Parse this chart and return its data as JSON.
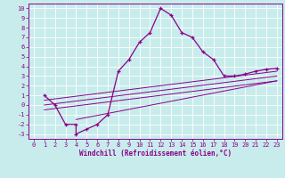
{
  "xlabel": "Windchill (Refroidissement éolien,°C)",
  "bg_color": "#c8ecec",
  "line_color": "#8b008b",
  "grid_color": "#ffffff",
  "spine_color": "#8b008b",
  "xlim": [
    -0.5,
    23.5
  ],
  "ylim": [
    -3.5,
    10.5
  ],
  "xticks": [
    0,
    1,
    2,
    3,
    4,
    5,
    6,
    7,
    8,
    9,
    10,
    11,
    12,
    13,
    14,
    15,
    16,
    17,
    18,
    19,
    20,
    21,
    22,
    23
  ],
  "yticks": [
    -3,
    -2,
    -1,
    0,
    1,
    2,
    3,
    4,
    5,
    6,
    7,
    8,
    9,
    10
  ],
  "main_line_x": [
    1,
    2,
    3,
    4,
    4,
    5,
    6,
    7,
    8,
    9,
    10,
    11,
    12,
    13,
    14,
    15,
    16,
    17,
    18,
    19,
    20,
    21,
    22,
    23
  ],
  "main_line_y": [
    1.0,
    0.0,
    -2.0,
    -2.0,
    -3.0,
    -2.5,
    -2.0,
    -1.0,
    3.5,
    4.7,
    6.5,
    7.5,
    10.0,
    9.3,
    7.5,
    7.0,
    5.5,
    4.7,
    3.0,
    3.0,
    3.2,
    3.5,
    3.7,
    3.8
  ],
  "straight_lines": [
    {
      "x": [
        1,
        23
      ],
      "y": [
        0.5,
        3.5
      ]
    },
    {
      "x": [
        1,
        23
      ],
      "y": [
        0.0,
        3.0
      ]
    },
    {
      "x": [
        1,
        23
      ],
      "y": [
        -0.5,
        2.5
      ]
    },
    {
      "x": [
        4,
        23
      ],
      "y": [
        -1.5,
        2.5
      ]
    }
  ],
  "tick_fontsize": 5,
  "xlabel_fontsize": 5.5
}
